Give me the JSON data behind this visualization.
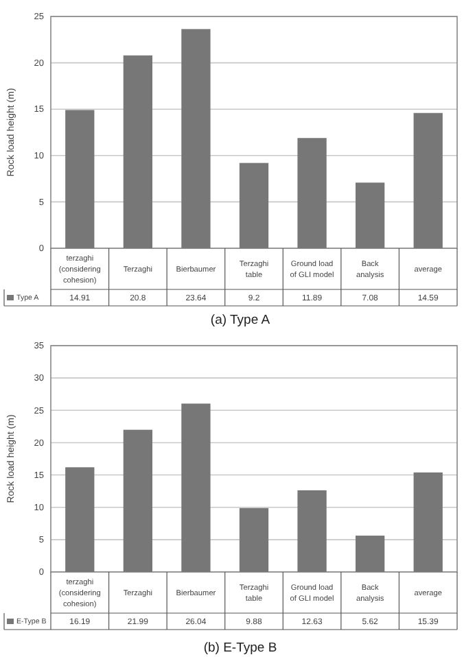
{
  "chart_data": [
    {
      "type": "bar",
      "title": "(a) Type A",
      "ylabel": "Rock load height (m)",
      "categories": [
        "terzaghi (considering cohesion)",
        "Terzaghi",
        "Bierbaumer",
        "Terzaghi table",
        "Ground load of GLI model",
        "Back analysis",
        "average"
      ],
      "series": [
        {
          "name": "Type A",
          "color": "#777777",
          "values": [
            14.91,
            20.8,
            23.64,
            9.2,
            11.89,
            7.08,
            14.59
          ]
        }
      ],
      "ylim": [
        0,
        25
      ],
      "yticks": [
        0,
        5,
        10,
        15,
        20,
        25
      ],
      "grid": "y",
      "legend": "bottom left",
      "data_labels": true
    },
    {
      "type": "bar",
      "title": "(b) E-Type B",
      "ylabel": "Rock load height (m)",
      "categories": [
        "terzaghi (considering cohesion)",
        "Terzaghi",
        "Bierbaumer",
        "Terzaghi table",
        "Ground load of GLI model",
        "Back analysis",
        "average"
      ],
      "series": [
        {
          "name": "E-Type B",
          "color": "#777777",
          "values": [
            16.19,
            21.99,
            26.04,
            9.88,
            12.63,
            5.62,
            15.39
          ]
        }
      ],
      "ylim": [
        0,
        35
      ],
      "yticks": [
        0,
        5,
        10,
        15,
        20,
        25,
        30,
        35
      ],
      "grid": "y",
      "legend": "bottom left",
      "data_labels": true
    }
  ]
}
